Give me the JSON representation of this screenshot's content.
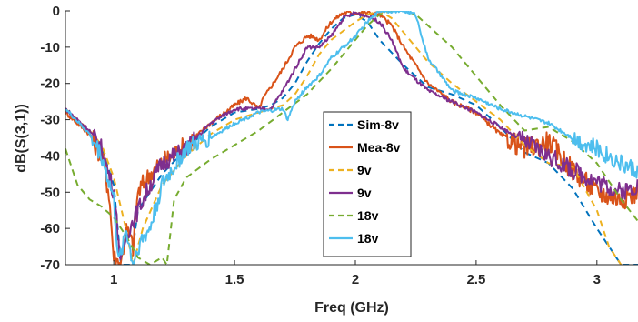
{
  "chart_data": {
    "type": "line",
    "xlabel": "Freq (GHz)",
    "ylabel": "dB(S(3,1))",
    "xlim": [
      0.8,
      3.17
    ],
    "ylim": [
      -70,
      0
    ],
    "xticks": [
      1,
      1.5,
      2,
      2.5,
      3
    ],
    "xtick_labels": [
      "1",
      "1.5",
      "2",
      "2.5",
      "3"
    ],
    "yticks": [
      0,
      -10,
      -20,
      -30,
      -40,
      -50,
      -60,
      -70
    ],
    "ytick_labels": [
      "0",
      "-10",
      "-20",
      "-30",
      "-40",
      "-50",
      "-60",
      "-70"
    ],
    "grid": false,
    "legend_position": "center-right",
    "series": [
      {
        "name": "Sim-8v",
        "color": "#0072BD",
        "dash": "dashed",
        "x": [
          0.8,
          0.9,
          0.95,
          1.0,
          1.03,
          1.07,
          1.1,
          1.15,
          1.2,
          1.3,
          1.4,
          1.5,
          1.6,
          1.65,
          1.7,
          1.75,
          1.8,
          1.85,
          1.9,
          1.95,
          2.0,
          2.05,
          2.1,
          2.2,
          2.3,
          2.4,
          2.5,
          2.6,
          2.7,
          2.8,
          2.9,
          3.0,
          3.1,
          3.17
        ],
        "y": [
          -27,
          -34,
          -38,
          -48,
          -70,
          -70,
          -55,
          -50,
          -45,
          -38,
          -32,
          -28,
          -27,
          -26,
          -24,
          -20,
          -14,
          -9,
          -5,
          -2,
          -1,
          -3,
          -8,
          -15,
          -21,
          -23,
          -26,
          -32,
          -39,
          -42,
          -49,
          -60,
          -70,
          -70
        ]
      },
      {
        "name": "Mea-8v",
        "color": "#D95319",
        "dash": "solid",
        "noise": 3,
        "x": [
          0.8,
          0.9,
          0.95,
          0.98,
          1.0,
          1.03,
          1.05,
          1.08,
          1.1,
          1.15,
          1.2,
          1.3,
          1.4,
          1.5,
          1.55,
          1.6,
          1.62,
          1.65,
          1.7,
          1.75,
          1.8,
          1.82,
          1.85,
          1.9,
          1.95,
          2.0,
          2.05,
          2.1,
          2.15,
          2.2,
          2.3,
          2.4,
          2.5,
          2.6,
          2.7,
          2.8,
          2.9,
          3.0,
          3.1,
          3.17
        ],
        "y": [
          -28,
          -34,
          -40,
          -50,
          -68,
          -70,
          -60,
          -65,
          -50,
          -45,
          -42,
          -37,
          -31,
          -26,
          -24,
          -27,
          -24,
          -21,
          -16,
          -10,
          -7,
          -7,
          -8,
          -3,
          -0.5,
          -0.5,
          -0.5,
          -1,
          -4,
          -10,
          -20,
          -25,
          -28,
          -34,
          -38,
          -36,
          -44,
          -50,
          -52,
          -50
        ]
      },
      {
        "name": "9v",
        "color": "#EDB120",
        "dash": "dashed",
        "x": [
          0.8,
          0.9,
          0.95,
          1.0,
          1.05,
          1.08,
          1.12,
          1.2,
          1.3,
          1.4,
          1.5,
          1.6,
          1.7,
          1.75,
          1.8,
          1.85,
          1.9,
          2.0,
          2.05,
          2.1,
          2.15,
          2.2,
          2.3,
          2.4,
          2.5,
          2.6,
          2.7,
          2.8,
          2.9,
          3.0,
          3.05,
          3.1
        ],
        "y": [
          -27,
          -33,
          -37,
          -46,
          -60,
          -70,
          -60,
          -48,
          -40,
          -34,
          -30,
          -28,
          -26,
          -23,
          -18,
          -12,
          -8,
          -3,
          -1,
          0,
          -2,
          -6,
          -14,
          -20,
          -25,
          -30,
          -37,
          -42,
          -43,
          -55,
          -65,
          -70
        ]
      },
      {
        "name": "9v",
        "color": "#7E2F8E",
        "dash": "solid",
        "noise": 2.5,
        "x": [
          0.8,
          0.9,
          0.95,
          1.0,
          1.03,
          1.05,
          1.1,
          1.15,
          1.2,
          1.3,
          1.4,
          1.5,
          1.6,
          1.65,
          1.7,
          1.75,
          1.8,
          1.85,
          1.9,
          1.95,
          2.0,
          2.05,
          2.1,
          2.15,
          2.2,
          2.3,
          2.4,
          2.5,
          2.6,
          2.7,
          2.8,
          2.9,
          3.0,
          3.1,
          3.17
        ],
        "y": [
          -27,
          -33,
          -38,
          -50,
          -70,
          -62,
          -55,
          -48,
          -42,
          -38,
          -31,
          -27,
          -27,
          -27,
          -22,
          -16,
          -10,
          -10,
          -7,
          -2,
          -0.5,
          -1.5,
          -3,
          -8,
          -16,
          -22,
          -25,
          -28,
          -32,
          -36,
          -40,
          -44,
          -47,
          -50,
          -48
        ]
      },
      {
        "name": "18v",
        "color": "#77AC30",
        "dash": "dashed",
        "x": [
          0.8,
          0.85,
          0.9,
          0.95,
          1.0,
          1.05,
          1.1,
          1.15,
          1.2,
          1.22,
          1.25,
          1.3,
          1.4,
          1.5,
          1.6,
          1.7,
          1.8,
          1.9,
          2.0,
          2.05,
          2.1,
          2.15,
          2.2,
          2.25,
          2.3,
          2.4,
          2.5,
          2.6,
          2.7,
          2.8,
          2.9,
          3.0,
          3.1,
          3.17
        ],
        "y": [
          -38,
          -48,
          -52,
          -54,
          -57,
          -62,
          -68,
          -70,
          -68,
          -70,
          -52,
          -46,
          -41,
          -37,
          -33,
          -28,
          -23,
          -16,
          -8,
          -4,
          -1,
          0,
          0,
          -1,
          -4,
          -10,
          -18,
          -26,
          -33,
          -32,
          -36,
          -42,
          -52,
          -58
        ]
      },
      {
        "name": "18v",
        "color": "#4DBEEE",
        "dash": "solid",
        "noise": 2.5,
        "x": [
          0.8,
          0.9,
          0.95,
          1.0,
          1.02,
          1.05,
          1.08,
          1.1,
          1.15,
          1.2,
          1.3,
          1.4,
          1.5,
          1.6,
          1.7,
          1.72,
          1.75,
          1.8,
          1.85,
          1.9,
          1.95,
          2.0,
          2.05,
          2.1,
          2.2,
          2.25,
          2.3,
          2.4,
          2.5,
          2.6,
          2.7,
          2.8,
          2.9,
          3.0,
          3.1,
          3.17
        ],
        "y": [
          -27,
          -34,
          -40,
          -52,
          -70,
          -60,
          -70,
          -65,
          -60,
          -48,
          -38,
          -35,
          -31,
          -28,
          -27,
          -30,
          -25,
          -21,
          -18,
          -13,
          -10,
          -7,
          -3,
          0,
          0,
          -1,
          -13,
          -22,
          -24,
          -27,
          -29,
          -31,
          -35,
          -38,
          -42,
          -44
        ]
      }
    ]
  }
}
